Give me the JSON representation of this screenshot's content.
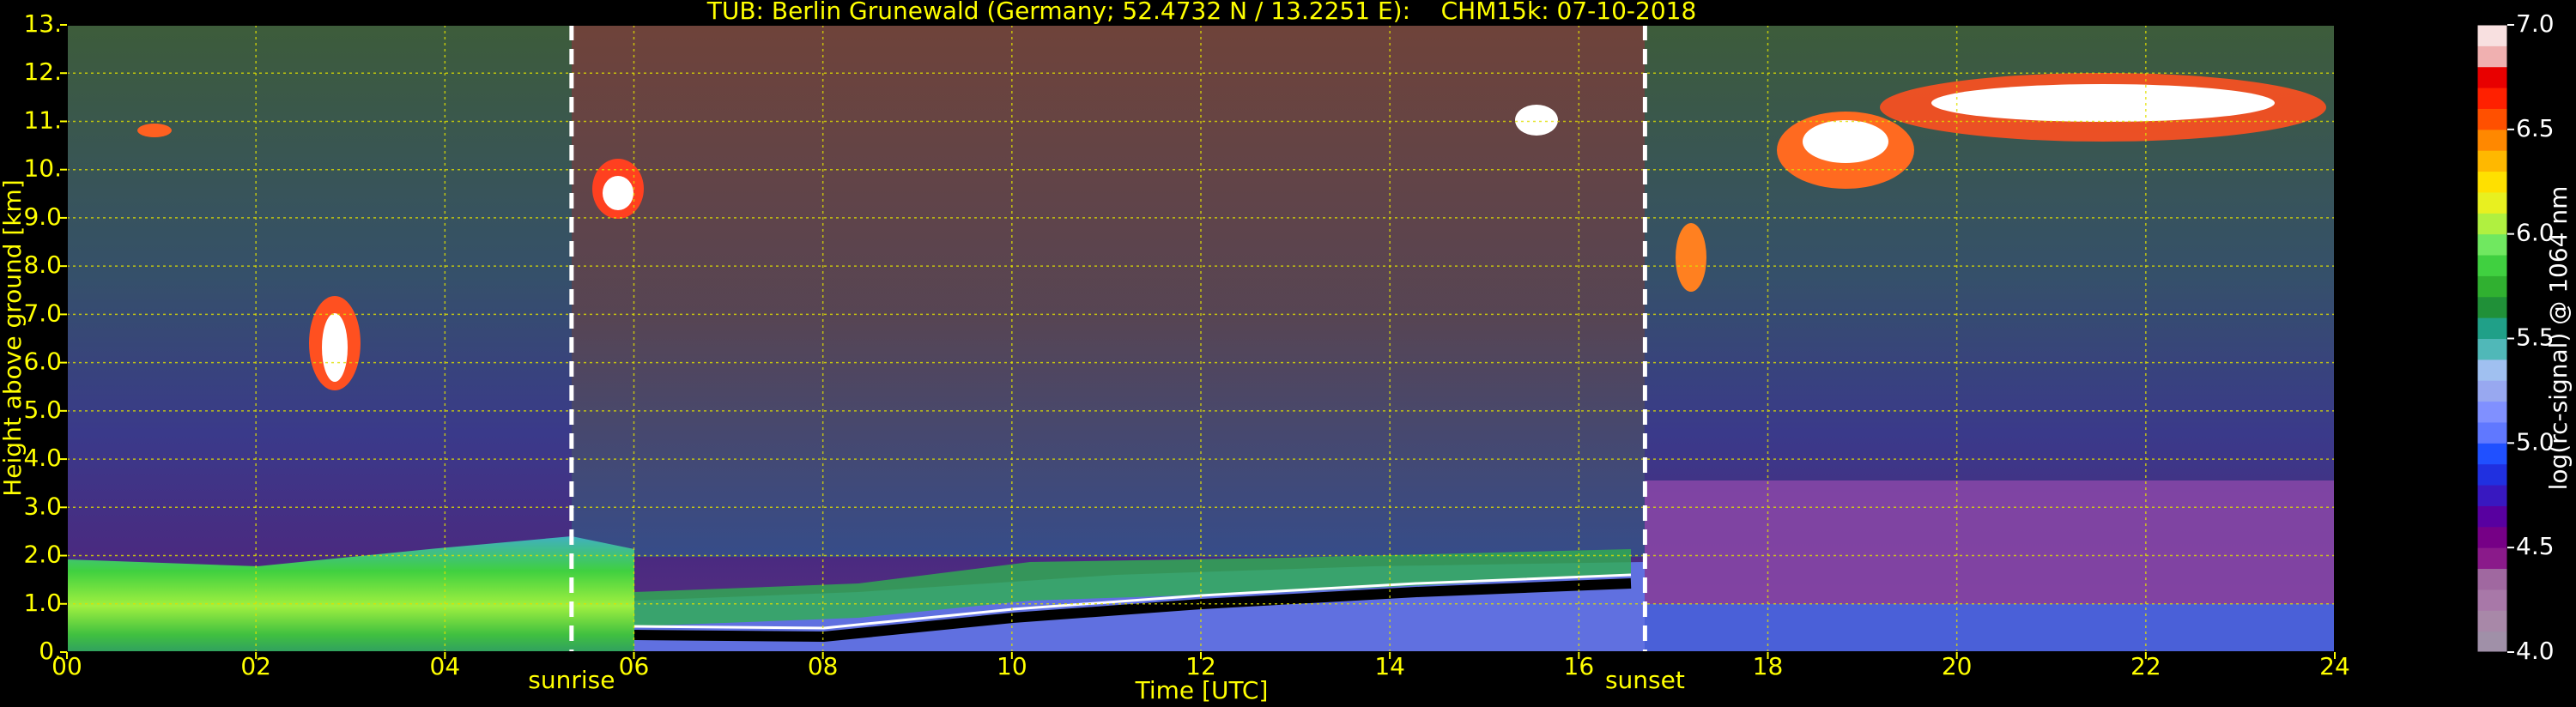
{
  "chart_data": {
    "type": "heatmap",
    "title": "TUB: Berlin Grunewald (Germany; 52.4732 N / 13.2251 E):    CHM15k: 07-10-2018",
    "xlabel": "Time [UTC]",
    "ylabel": "Height above ground [km]",
    "xlim": [
      0,
      24
    ],
    "xticks": [
      {
        "value": 0,
        "label": "00"
      },
      {
        "value": 2,
        "label": "02"
      },
      {
        "value": 4,
        "label": "04"
      },
      {
        "value": 6,
        "label": "06"
      },
      {
        "value": 8,
        "label": "08"
      },
      10,
      12,
      14,
      16,
      18,
      20,
      22,
      24
    ],
    "ylim": [
      0,
      13
    ],
    "yticks": [
      {
        "value": 0,
        "label": "0."
      },
      {
        "value": 1,
        "label": "1.0"
      },
      {
        "value": 2,
        "label": "2.0"
      },
      {
        "value": 3,
        "label": "3.0"
      },
      {
        "value": 4,
        "label": "4.0"
      },
      {
        "value": 5,
        "label": "5.0"
      },
      {
        "value": 6,
        "label": "6.0"
      },
      {
        "value": 7,
        "label": "7.0"
      },
      {
        "value": 8,
        "label": "8.0"
      },
      {
        "value": 9,
        "label": "9.0"
      },
      {
        "value": 10,
        "label": "10."
      },
      {
        "value": 11,
        "label": "11."
      },
      {
        "value": 12,
        "label": "12."
      },
      {
        "value": 13,
        "label": "13."
      }
    ],
    "grid": true,
    "grid_color": "#e0e000",
    "annotations": [
      {
        "x": 5.34,
        "text": "sunrise"
      },
      {
        "x": 16.7,
        "text": "sunset"
      }
    ],
    "colorbar": {
      "label": "log(rc-signal) @ 1064 nm",
      "lim": [
        4,
        7
      ],
      "ticks": [
        {
          "value": 4,
          "label": "4.0"
        },
        {
          "value": 4.5,
          "label": "4.5"
        },
        {
          "value": 5,
          "label": "5.0"
        },
        {
          "value": 5.5,
          "label": "5.5"
        },
        {
          "value": 6,
          "label": "6.0"
        },
        {
          "value": 6.5,
          "label": "6.5"
        },
        {
          "value": 7,
          "label": "7.0"
        }
      ],
      "colors": [
        "#a090a8",
        "#a888a8",
        "#a878a8",
        "#a068a0",
        "#8a1a8a",
        "#760086",
        "#5800a0",
        "#3818c0",
        "#2030e0",
        "#2050ff",
        "#6078ff",
        "#8090ff",
        "#98a8f0",
        "#a0c0f0",
        "#50b8b8",
        "#20a088",
        "#209038",
        "#30b030",
        "#40d040",
        "#70e860",
        "#b0f040",
        "#e8f020",
        "#ffe000",
        "#ffb800",
        "#ff8800",
        "#ff5000",
        "#ff2000",
        "#e80000",
        "#f0b0b0",
        "#f8e0e0"
      ]
    }
  }
}
